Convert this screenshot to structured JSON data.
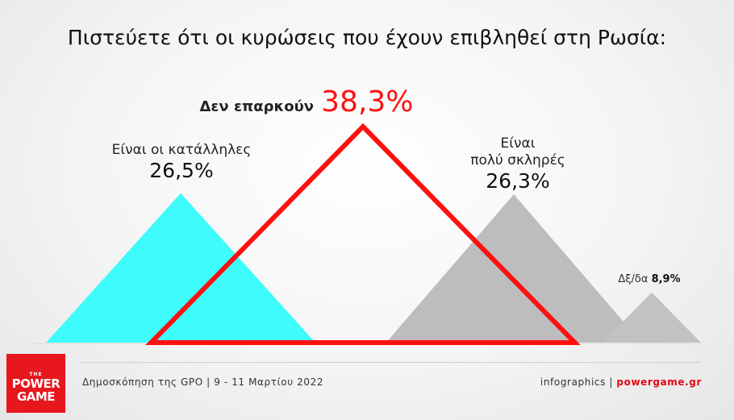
{
  "title": "Πιστεύετε ότι οι κυρώσεις που έχουν επιβληθεί στη Ρωσία:",
  "chart_data": {
    "type": "area",
    "categories": [
      "Είναι οι κατάλληλες",
      "Δεν επαρκούν",
      "Είναι πολύ σκληρές",
      "Δξ/δα"
    ],
    "values": [
      26.5,
      38.3,
      26.3,
      8.9
    ],
    "value_labels": [
      "26,5%",
      "38,3%",
      "26,3%",
      "8,9%"
    ],
    "label_lines": [
      [
        "Είναι οι κατάλληλες"
      ],
      [
        "Δεν επαρκούν"
      ],
      [
        "Είναι",
        "πολύ σκληρές"
      ],
      [
        "Δξ/δα"
      ]
    ],
    "colors": [
      "#3ffcfc",
      "#ff1010",
      "#bdbdbd",
      "#c2c2c2"
    ],
    "styles": [
      "filled",
      "outline",
      "filled",
      "filled"
    ]
  },
  "footer": {
    "source": "Δημοσκόπηση της GPO | 9 - 11 Μαρτίου 2022",
    "credit_prefix": "infographics | ",
    "credit_site": "powergame.gr"
  },
  "logo": {
    "line0": "THE",
    "line1": "POWER",
    "line2": "GAME"
  }
}
